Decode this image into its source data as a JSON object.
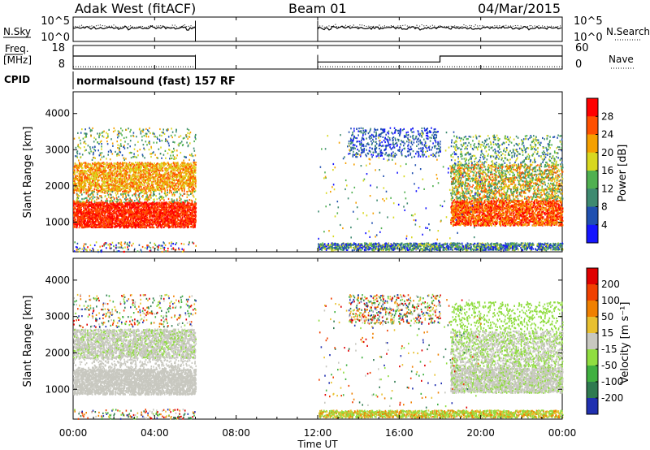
{
  "header": {
    "station": "Adak West (fitACF)",
    "beam": "Beam 01",
    "date": "04/Mar/2015"
  },
  "labels": {
    "nsky": "N.Sky",
    "freq_top": "Freq.",
    "freq_unit": "[MHz]",
    "cpid": "CPID",
    "nsearch": "N.Search",
    "nave": "Nave",
    "program": "normalsound (fast) 157 RF",
    "time_axis": "Time UT"
  },
  "chart_data": [
    {
      "type": "line",
      "panel": "noise",
      "left_ticks": [
        "10^5",
        "10^0"
      ],
      "right_ticks": [
        "10^5",
        "10^0"
      ],
      "series": [
        {
          "name": "N.Sky",
          "style": "solid",
          "segments": [
            [
              0,
              6
            ],
            [
              12,
              24
            ]
          ]
        },
        {
          "name": "N.Search",
          "style": "dotted",
          "segments": [
            [
              0,
              6
            ],
            [
              12,
              24
            ]
          ]
        }
      ]
    },
    {
      "type": "line",
      "panel": "freq_nave",
      "left_ticks": [
        "18",
        "8"
      ],
      "right_ticks": [
        "60",
        "0"
      ],
      "freq_ylim": [
        8,
        18
      ],
      "nave_ylim": [
        0,
        60
      ],
      "series": [
        {
          "name": "Freq.",
          "style": "solid",
          "points": [
            [
              0,
              13.5
            ],
            [
              6,
              13.5
            ],
            [
              12,
              11
            ],
            [
              18,
              11
            ],
            [
              18,
              13.5
            ],
            [
              24,
              13.5
            ]
          ],
          "gap": [
            6,
            12
          ]
        },
        {
          "name": "Nave",
          "style": "dotted",
          "points": [
            [
              0,
              9
            ],
            [
              6,
              9
            ],
            [
              12,
              9
            ],
            [
              24,
              9
            ]
          ],
          "gap": [
            6,
            12
          ]
        }
      ]
    },
    {
      "type": "heatmap",
      "panel": "power",
      "ylabel": "Slant Range [km]",
      "yticks": [
        1000,
        2000,
        3000,
        4000
      ],
      "ylim": [
        180,
        4600
      ],
      "xlim": [
        0,
        24
      ],
      "scale_label": "Power [dB]",
      "scale_ticks": [
        4,
        8,
        12,
        16,
        20,
        24,
        28
      ],
      "scale_range": [
        0,
        32
      ],
      "colors": [
        "#1515ff",
        "#2050b0",
        "#3e8a70",
        "#50b050",
        "#d8d820",
        "#f5a000",
        "#ff5000",
        "#ff0000"
      ]
    },
    {
      "type": "heatmap",
      "panel": "velocity",
      "ylabel": "Slant Range [km]",
      "yticks": [
        1000,
        2000,
        3000,
        4000
      ],
      "ylim": [
        180,
        4600
      ],
      "xlim": [
        0,
        24
      ],
      "scale_label": "Velocity [m s⁻¹]",
      "scale_ticks": [
        200,
        100,
        50,
        15,
        -15,
        -50,
        -100,
        -200
      ],
      "colors": [
        "#2030b0",
        "#2f7a50",
        "#40b040",
        "#90dd40",
        "#c8c8c0",
        "#e8c030",
        "#f08000",
        "#f04000",
        "#e00000"
      ]
    }
  ],
  "x_axis": {
    "ticks": [
      "00:00",
      "04:00",
      "08:00",
      "12:00",
      "16:00",
      "20:00",
      "00:00"
    ],
    "hours": [
      0,
      4,
      8,
      12,
      16,
      20,
      24
    ]
  }
}
